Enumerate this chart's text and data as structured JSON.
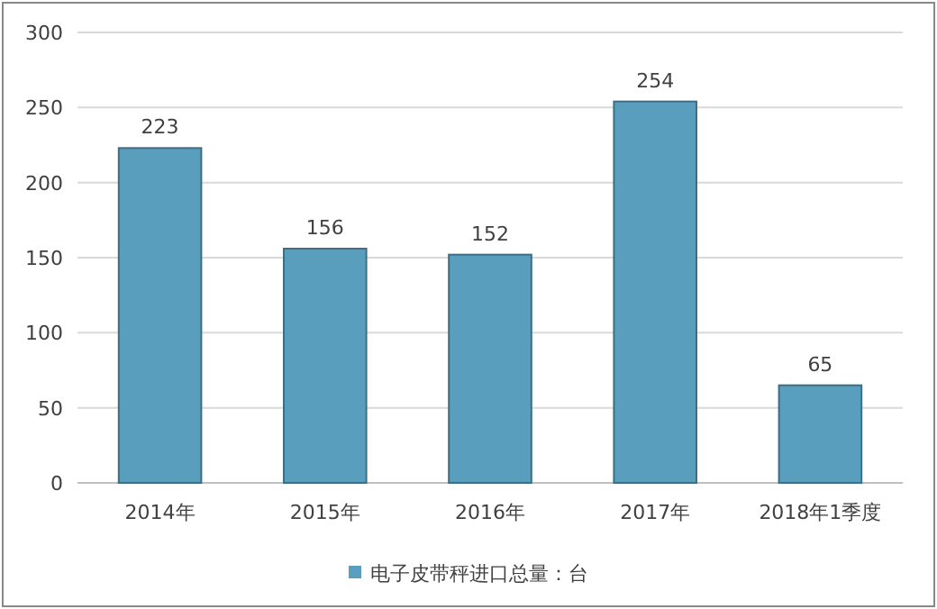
{
  "chart_data": {
    "type": "bar",
    "categories": [
      "2014年",
      "2015年",
      "2016年",
      "2017年",
      "2018年1季度"
    ],
    "series": [
      {
        "name": "电子皮带秤进口总量：台",
        "color": "#5a9ebd",
        "values": [
          223,
          156,
          152,
          254,
          65
        ]
      }
    ],
    "ylim": [
      0,
      300
    ],
    "yticks": [
      0,
      50,
      100,
      150,
      200,
      250,
      300
    ],
    "grid": "y",
    "legend": "bottom",
    "data_labels": true
  }
}
